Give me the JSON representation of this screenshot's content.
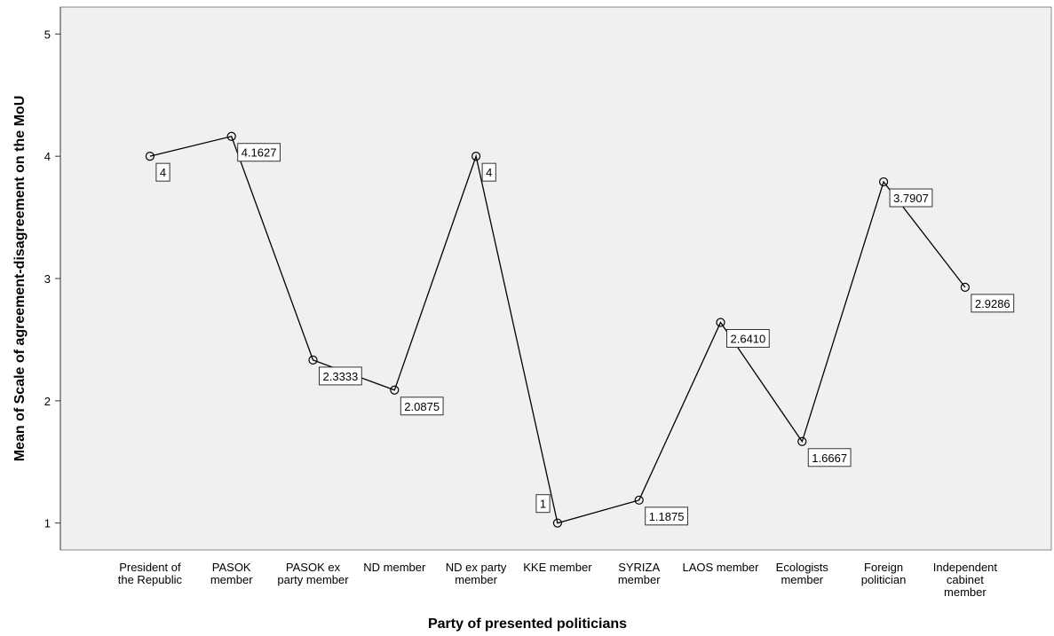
{
  "chart_data": {
    "type": "line",
    "x_label": "Party of presented politicians",
    "y_label": "Mean of Scale of agreement-disagreement on the MoU",
    "categories": [
      "President of the Republic",
      "PASOK member",
      "PASOK ex party member",
      "ND member",
      "ND ex party member",
      "KKE member",
      "SYRIZA member",
      "LAOS member",
      "Ecologists member",
      "Foreign politician",
      "Independent cabinet member"
    ],
    "values": [
      4,
      4.1627,
      2.3333,
      2.0875,
      4,
      1,
      1.1875,
      2.641,
      1.6667,
      3.7907,
      2.9286
    ],
    "value_labels": [
      "4",
      "4.1627",
      "2.3333",
      "2.0875",
      "4",
      "1",
      "1.1875",
      "2.6410",
      "1.6667",
      "3.7907",
      "2.9286"
    ],
    "color": "#000000",
    "ylim": [
      0.78,
      5.22
    ],
    "yticks": [
      1,
      2,
      3,
      4,
      5
    ]
  }
}
